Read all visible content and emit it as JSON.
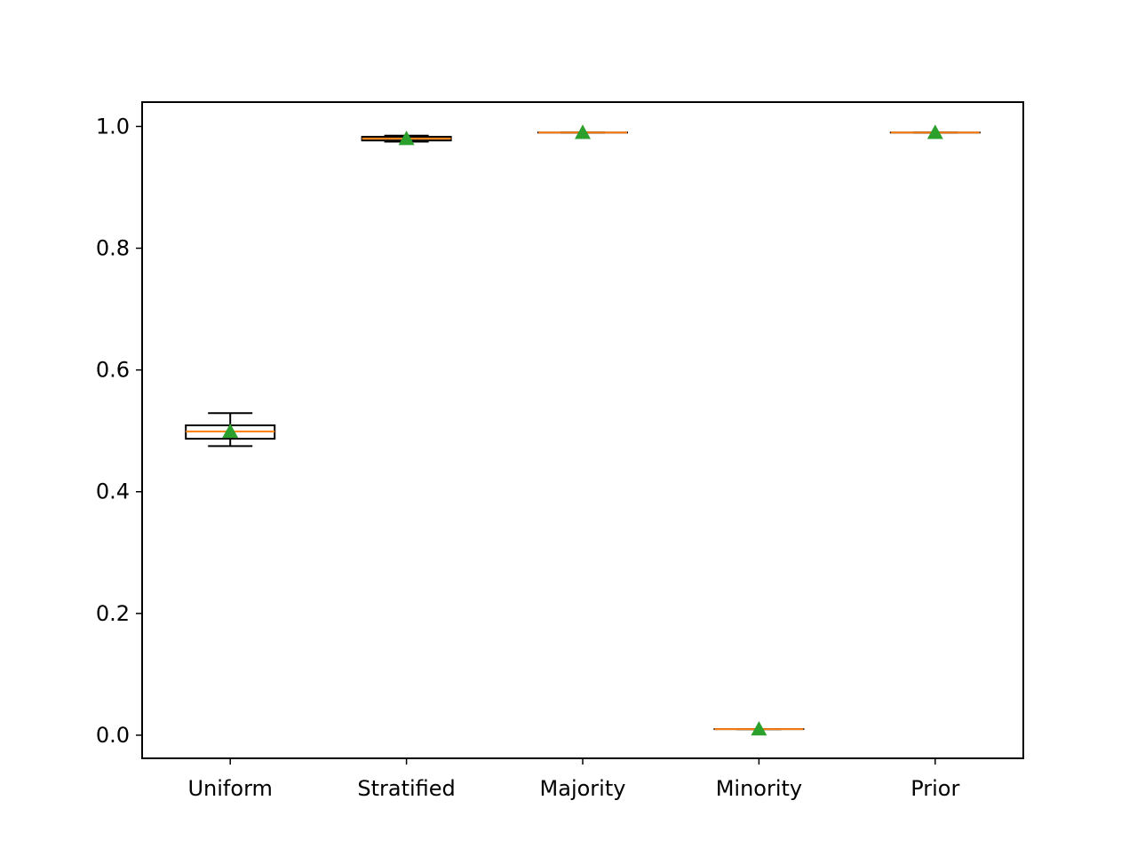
{
  "chart_data": {
    "type": "box",
    "title": "",
    "xlabel": "",
    "ylabel": "",
    "ylim": [
      -0.038,
      1.04
    ],
    "yticks": [
      0.0,
      0.2,
      0.4,
      0.6,
      0.8,
      1.0
    ],
    "ytick_labels": [
      "0.0",
      "0.2",
      "0.4",
      "0.6",
      "0.8",
      "1.0"
    ],
    "categories": [
      "Uniform",
      "Stratified",
      "Majority",
      "Minority",
      "Prior"
    ],
    "boxes": [
      {
        "name": "Uniform",
        "whislo": 0.475,
        "q1": 0.487,
        "med": 0.499,
        "q3": 0.509,
        "whishi": 0.529,
        "mean": 0.499
      },
      {
        "name": "Stratified",
        "whislo": 0.975,
        "q1": 0.977,
        "med": 0.98,
        "q3": 0.983,
        "whishi": 0.985,
        "mean": 0.98
      },
      {
        "name": "Majority",
        "whislo": 0.99,
        "q1": 0.99,
        "med": 0.99,
        "q3": 0.99,
        "whishi": 0.99,
        "mean": 0.99
      },
      {
        "name": "Minority",
        "whislo": 0.01,
        "q1": 0.01,
        "med": 0.01,
        "q3": 0.01,
        "whishi": 0.01,
        "mean": 0.01
      },
      {
        "name": "Prior",
        "whislo": 0.99,
        "q1": 0.99,
        "med": 0.99,
        "q3": 0.99,
        "whishi": 0.99,
        "mean": 0.99
      }
    ],
    "grid": false,
    "legend": "none",
    "colors": {
      "box": "#000000",
      "median": "#ff7f0e",
      "mean_marker": "#2ca02c"
    },
    "mean_marker": "triangle"
  }
}
